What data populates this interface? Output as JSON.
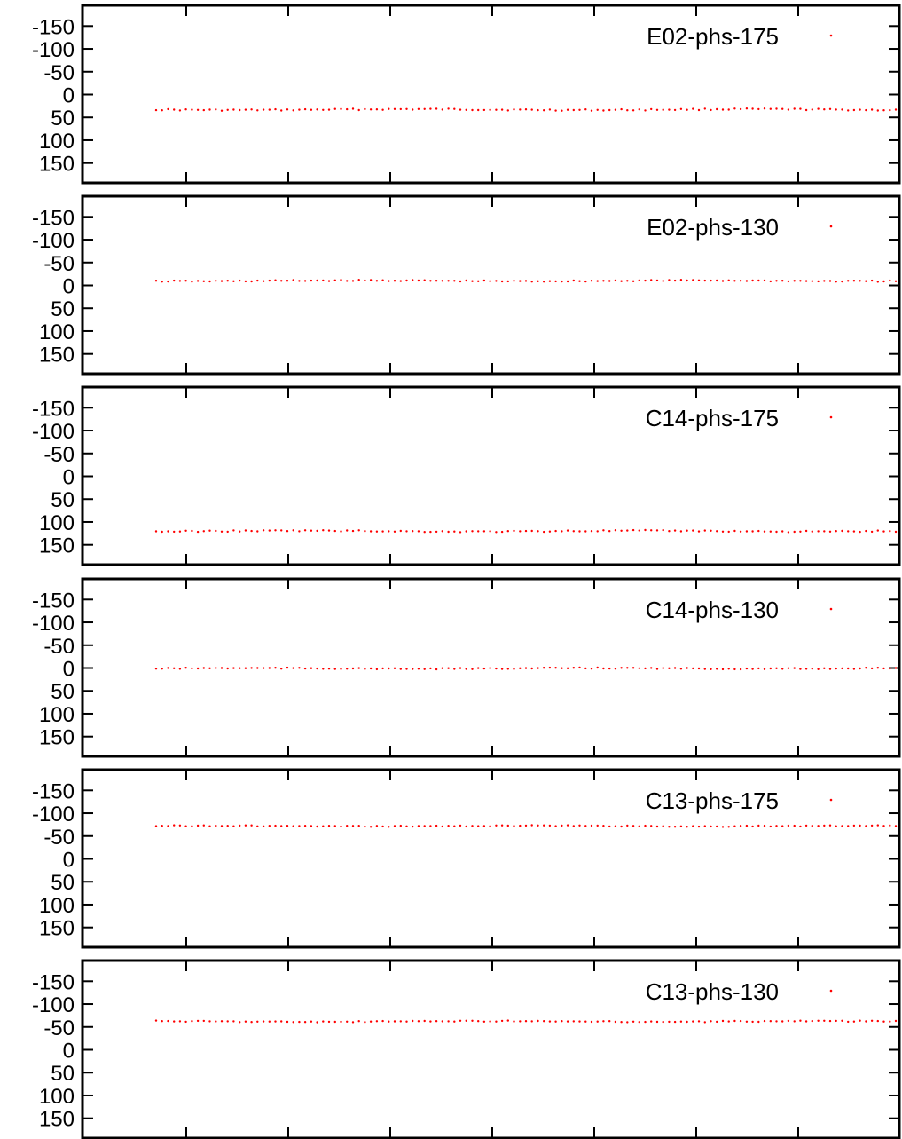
{
  "chart_data": [
    {
      "type": "scatter",
      "legend": "E02-phs-175",
      "legend_position": "top-right",
      "ylim": [
        170,
        -170
      ],
      "y_ticks": [
        -150,
        -100,
        -50,
        0,
        50,
        100,
        150
      ],
      "y_tick_labels": [
        "-150",
        "-100",
        "-50",
        "0",
        "50",
        "100",
        "150"
      ],
      "grid": false,
      "series": [
        {
          "name": "E02-phs-175",
          "color": "#ff0000",
          "mean": 33,
          "jitter": 1.6,
          "count": 125
        }
      ]
    },
    {
      "type": "scatter",
      "legend": "E02-phs-130",
      "legend_position": "top-right",
      "ylim": [
        170,
        -170
      ],
      "y_ticks": [
        -150,
        -100,
        -50,
        0,
        50,
        100,
        150
      ],
      "y_tick_labels": [
        "-150",
        "-100",
        "-50",
        "0",
        "50",
        "100",
        "150"
      ],
      "grid": false,
      "series": [
        {
          "name": "E02-phs-130",
          "color": "#ff0000",
          "mean": -10,
          "jitter": 1.4,
          "count": 125
        }
      ]
    },
    {
      "type": "scatter",
      "legend": "C14-phs-175",
      "legend_position": "top-right",
      "ylim": [
        170,
        -170
      ],
      "y_ticks": [
        -150,
        -100,
        -50,
        0,
        50,
        100,
        150
      ],
      "y_tick_labels": [
        "-150",
        "-100",
        "-50",
        "0",
        "50",
        "100",
        "150"
      ],
      "grid": false,
      "series": [
        {
          "name": "C14-phs-175",
          "color": "#ff0000",
          "mean": 120,
          "jitter": 1.5,
          "count": 125
        }
      ]
    },
    {
      "type": "scatter",
      "legend": "C14-phs-130",
      "legend_position": "top-right",
      "ylim": [
        170,
        -170
      ],
      "y_ticks": [
        -150,
        -100,
        -50,
        0,
        50,
        100,
        150
      ],
      "y_tick_labels": [
        "-150",
        "-100",
        "-50",
        "0",
        "50",
        "100",
        "150"
      ],
      "grid": false,
      "series": [
        {
          "name": "C14-phs-130",
          "color": "#ff0000",
          "mean": 1,
          "jitter": 1.3,
          "count": 125
        }
      ]
    },
    {
      "type": "scatter",
      "legend": "C13-phs-175",
      "legend_position": "top-right",
      "ylim": [
        170,
        -170
      ],
      "y_ticks": [
        -150,
        -100,
        -50,
        0,
        50,
        100,
        150
      ],
      "y_tick_labels": [
        "-150",
        "-100",
        "-50",
        "0",
        "50",
        "100",
        "150"
      ],
      "grid": false,
      "series": [
        {
          "name": "C13-phs-175",
          "color": "#ff0000",
          "mean": -72,
          "jitter": 1.2,
          "count": 125
        }
      ]
    },
    {
      "type": "scatter",
      "legend": "C13-phs-130",
      "legend_position": "top-right",
      "ylim": [
        170,
        -170
      ],
      "y_ticks": [
        -150,
        -100,
        -50,
        0,
        50,
        100,
        150
      ],
      "y_tick_labels": [
        "-150",
        "-100",
        "-50",
        "0",
        "50",
        "100",
        "150"
      ],
      "grid": false,
      "series": [
        {
          "name": "C13-phs-130",
          "color": "#ff0000",
          "mean": -62,
          "jitter": 1.3,
          "count": 125
        }
      ]
    }
  ]
}
